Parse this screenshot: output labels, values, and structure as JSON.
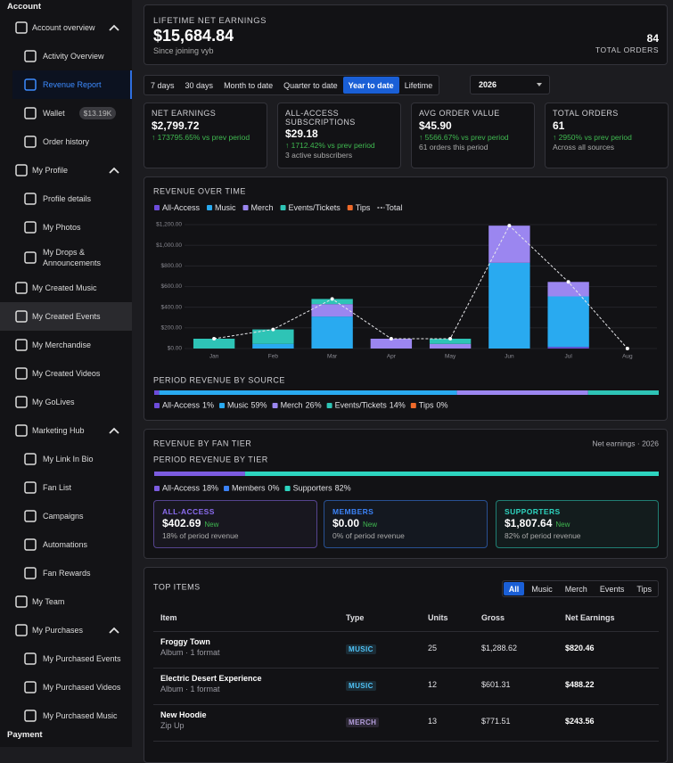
{
  "sidebar": {
    "title": "Account",
    "items": [
      {
        "label": "Account overview",
        "children": [
          {
            "label": "Activity Overview"
          },
          {
            "label": "Revenue Report",
            "selected": true
          },
          {
            "label": "Wallet",
            "badge": "$13.19K"
          },
          {
            "label": "Order history"
          }
        ]
      },
      {
        "label": "My Profile",
        "children": [
          {
            "label": "Profile details"
          },
          {
            "label": "My Photos"
          },
          {
            "label": "My Drops & Announcements"
          }
        ]
      },
      {
        "label": "My Created Music"
      },
      {
        "label": "My Created Events",
        "highlighted": true
      },
      {
        "label": "My Merchandise"
      },
      {
        "label": "My Created Videos"
      },
      {
        "label": "My GoLives"
      },
      {
        "label": "Marketing Hub",
        "children": [
          {
            "label": "My Link In Bio"
          },
          {
            "label": "Fan List"
          },
          {
            "label": "Campaigns"
          },
          {
            "label": "Automations"
          },
          {
            "label": "Fan Rewards"
          }
        ]
      },
      {
        "label": "My Team"
      },
      {
        "label": "My Purchases",
        "children": [
          {
            "label": "My Purchased Events"
          },
          {
            "label": "My Purchased Videos"
          },
          {
            "label": "My Purchased Music"
          }
        ]
      }
    ],
    "footer": "Payment"
  },
  "summary": {
    "label": "LIFETIME NET EARNINGS",
    "amount": "$15,684.84",
    "note": "Since joining vyb",
    "orders": 84,
    "orders_label": "TOTAL ORDERS"
  },
  "filters": {
    "ranges": [
      {
        "label": "7 days"
      },
      {
        "label": "30 days"
      },
      {
        "label": "Month to date"
      },
      {
        "label": "Quarter to date"
      },
      {
        "label": "Year to date",
        "active": true
      },
      {
        "label": "Lifetime"
      }
    ],
    "year": "2026"
  },
  "stats": [
    {
      "label": "NET EARNINGS",
      "value": "$2,799.72",
      "change": "↑ 173795.65% vs prev period"
    },
    {
      "label": "ALL-ACCESS SUBSCRIPTIONS",
      "value": "$29.18",
      "change": "↑ 1712.42% vs prev period",
      "note": "3 active subscribers"
    },
    {
      "label": "AVG ORDER VALUE",
      "value": "$45.90",
      "change": "↑ 5566.67% vs prev period",
      "note": "61 orders this period"
    },
    {
      "label": "TOTAL ORDERS",
      "value": "61",
      "change": "↑ 2950% vs prev period",
      "note": "Across all sources"
    }
  ],
  "chart_data": [
    {
      "type": "bar",
      "title": "REVENUE OVER TIME",
      "stacked": true,
      "grid": true,
      "categories": [
        "Jan",
        "Feb",
        "Mar",
        "Apr",
        "May",
        "Jun",
        "Jul",
        "Aug"
      ],
      "ylim": [
        0,
        1200
      ],
      "yticks": [
        {
          "value": 0,
          "label": "$0.00"
        },
        {
          "value": 200,
          "label": "$200.00"
        },
        {
          "value": 400,
          "label": "$400.00"
        },
        {
          "value": 600,
          "label": "$600.00"
        },
        {
          "value": 800,
          "label": "$800.00"
        },
        {
          "value": 1000,
          "label": "$1,000.00"
        },
        {
          "value": 1200,
          "label": "$1,200.00"
        }
      ],
      "series": [
        {
          "name": "All-Access",
          "color": "#6d4cdb",
          "values": [
            0,
            0,
            0,
            0,
            0,
            0,
            15,
            0
          ]
        },
        {
          "name": "Music",
          "color": "#29aaf0",
          "values": [
            0,
            45,
            310,
            0,
            0,
            830,
            490,
            0
          ]
        },
        {
          "name": "Merch",
          "color": "#9b86f0",
          "values": [
            0,
            0,
            120,
            95,
            45,
            360,
            140,
            0
          ]
        },
        {
          "name": "Events/Tickets",
          "color": "#2ec4b6",
          "values": [
            95,
            140,
            50,
            0,
            50,
            0,
            0,
            0
          ]
        },
        {
          "name": "Tips",
          "color": "#f06a2a",
          "values": [
            0,
            0,
            0,
            0,
            0,
            0,
            0,
            0
          ]
        },
        {
          "name": "Total",
          "type": "line",
          "color": "#e8e8ec",
          "values": [
            95,
            185,
            480,
            95,
            95,
            1190,
            645,
            0
          ]
        }
      ]
    },
    {
      "type": "share",
      "title": "PERIOD REVENUE BY SOURCE",
      "categories": [
        "All-Access",
        "Music",
        "Merch",
        "Events/Tickets",
        "Tips"
      ],
      "values": [
        1,
        59,
        26,
        14,
        0
      ],
      "value_labels": [
        "1%",
        "59%",
        "26%",
        "14%",
        "0%"
      ],
      "colors": [
        "#6d4cdb",
        "#29aaf0",
        "#9b86f0",
        "#2ec4b6",
        "#f06a2a"
      ]
    },
    {
      "type": "share",
      "title": "PERIOD REVENUE BY TIER",
      "categories": [
        "All-Access",
        "Members",
        "Supporters"
      ],
      "values": [
        18,
        0,
        82
      ],
      "value_labels": [
        "18%",
        "0%",
        "82%"
      ],
      "colors": [
        "#7c5ce0",
        "#3b82f6",
        "#2dd4bf"
      ]
    }
  ],
  "fan_tier": {
    "title": "REVENUE BY FAN TIER",
    "scope": "Net earnings · 2026",
    "cards": [
      {
        "label": "ALL-ACCESS",
        "amount": "$402.69",
        "badge": "New",
        "share": "18% of period revenue",
        "color": "#8b6cf0"
      },
      {
        "label": "MEMBERS",
        "amount": "$0.00",
        "badge": "New",
        "share": "0% of period revenue",
        "color": "#3b82f6"
      },
      {
        "label": "SUPPORTERS",
        "amount": "$1,807.64",
        "badge": "New",
        "share": "82% of period revenue",
        "color": "#2dd4bf"
      }
    ]
  },
  "top_items": {
    "title": "TOP ITEMS",
    "tabs": [
      {
        "label": "All",
        "active": true
      },
      {
        "label": "Music"
      },
      {
        "label": "Merch"
      },
      {
        "label": "Events"
      },
      {
        "label": "Tips"
      }
    ],
    "columns": [
      "Item",
      "Type",
      "Units",
      "Gross",
      "Net Earnings"
    ],
    "rows": [
      {
        "item": "Froggy Town",
        "detail": "Album · 1 format",
        "type": "MUSIC",
        "type_color": "#4fc3f7",
        "units": 25,
        "gross": "$1,288.62",
        "net": "$820.46"
      },
      {
        "item": "Electric Desert Experience",
        "detail": "Album · 1 format",
        "type": "MUSIC",
        "type_color": "#4fc3f7",
        "units": 12,
        "gross": "$601.31",
        "net": "$488.22"
      },
      {
        "item": "New Hoodie",
        "detail": "Zip Up",
        "type": "MERCH",
        "type_color": "#b39ddb",
        "units": 13,
        "gross": "$771.51",
        "net": "$243.56"
      }
    ]
  }
}
